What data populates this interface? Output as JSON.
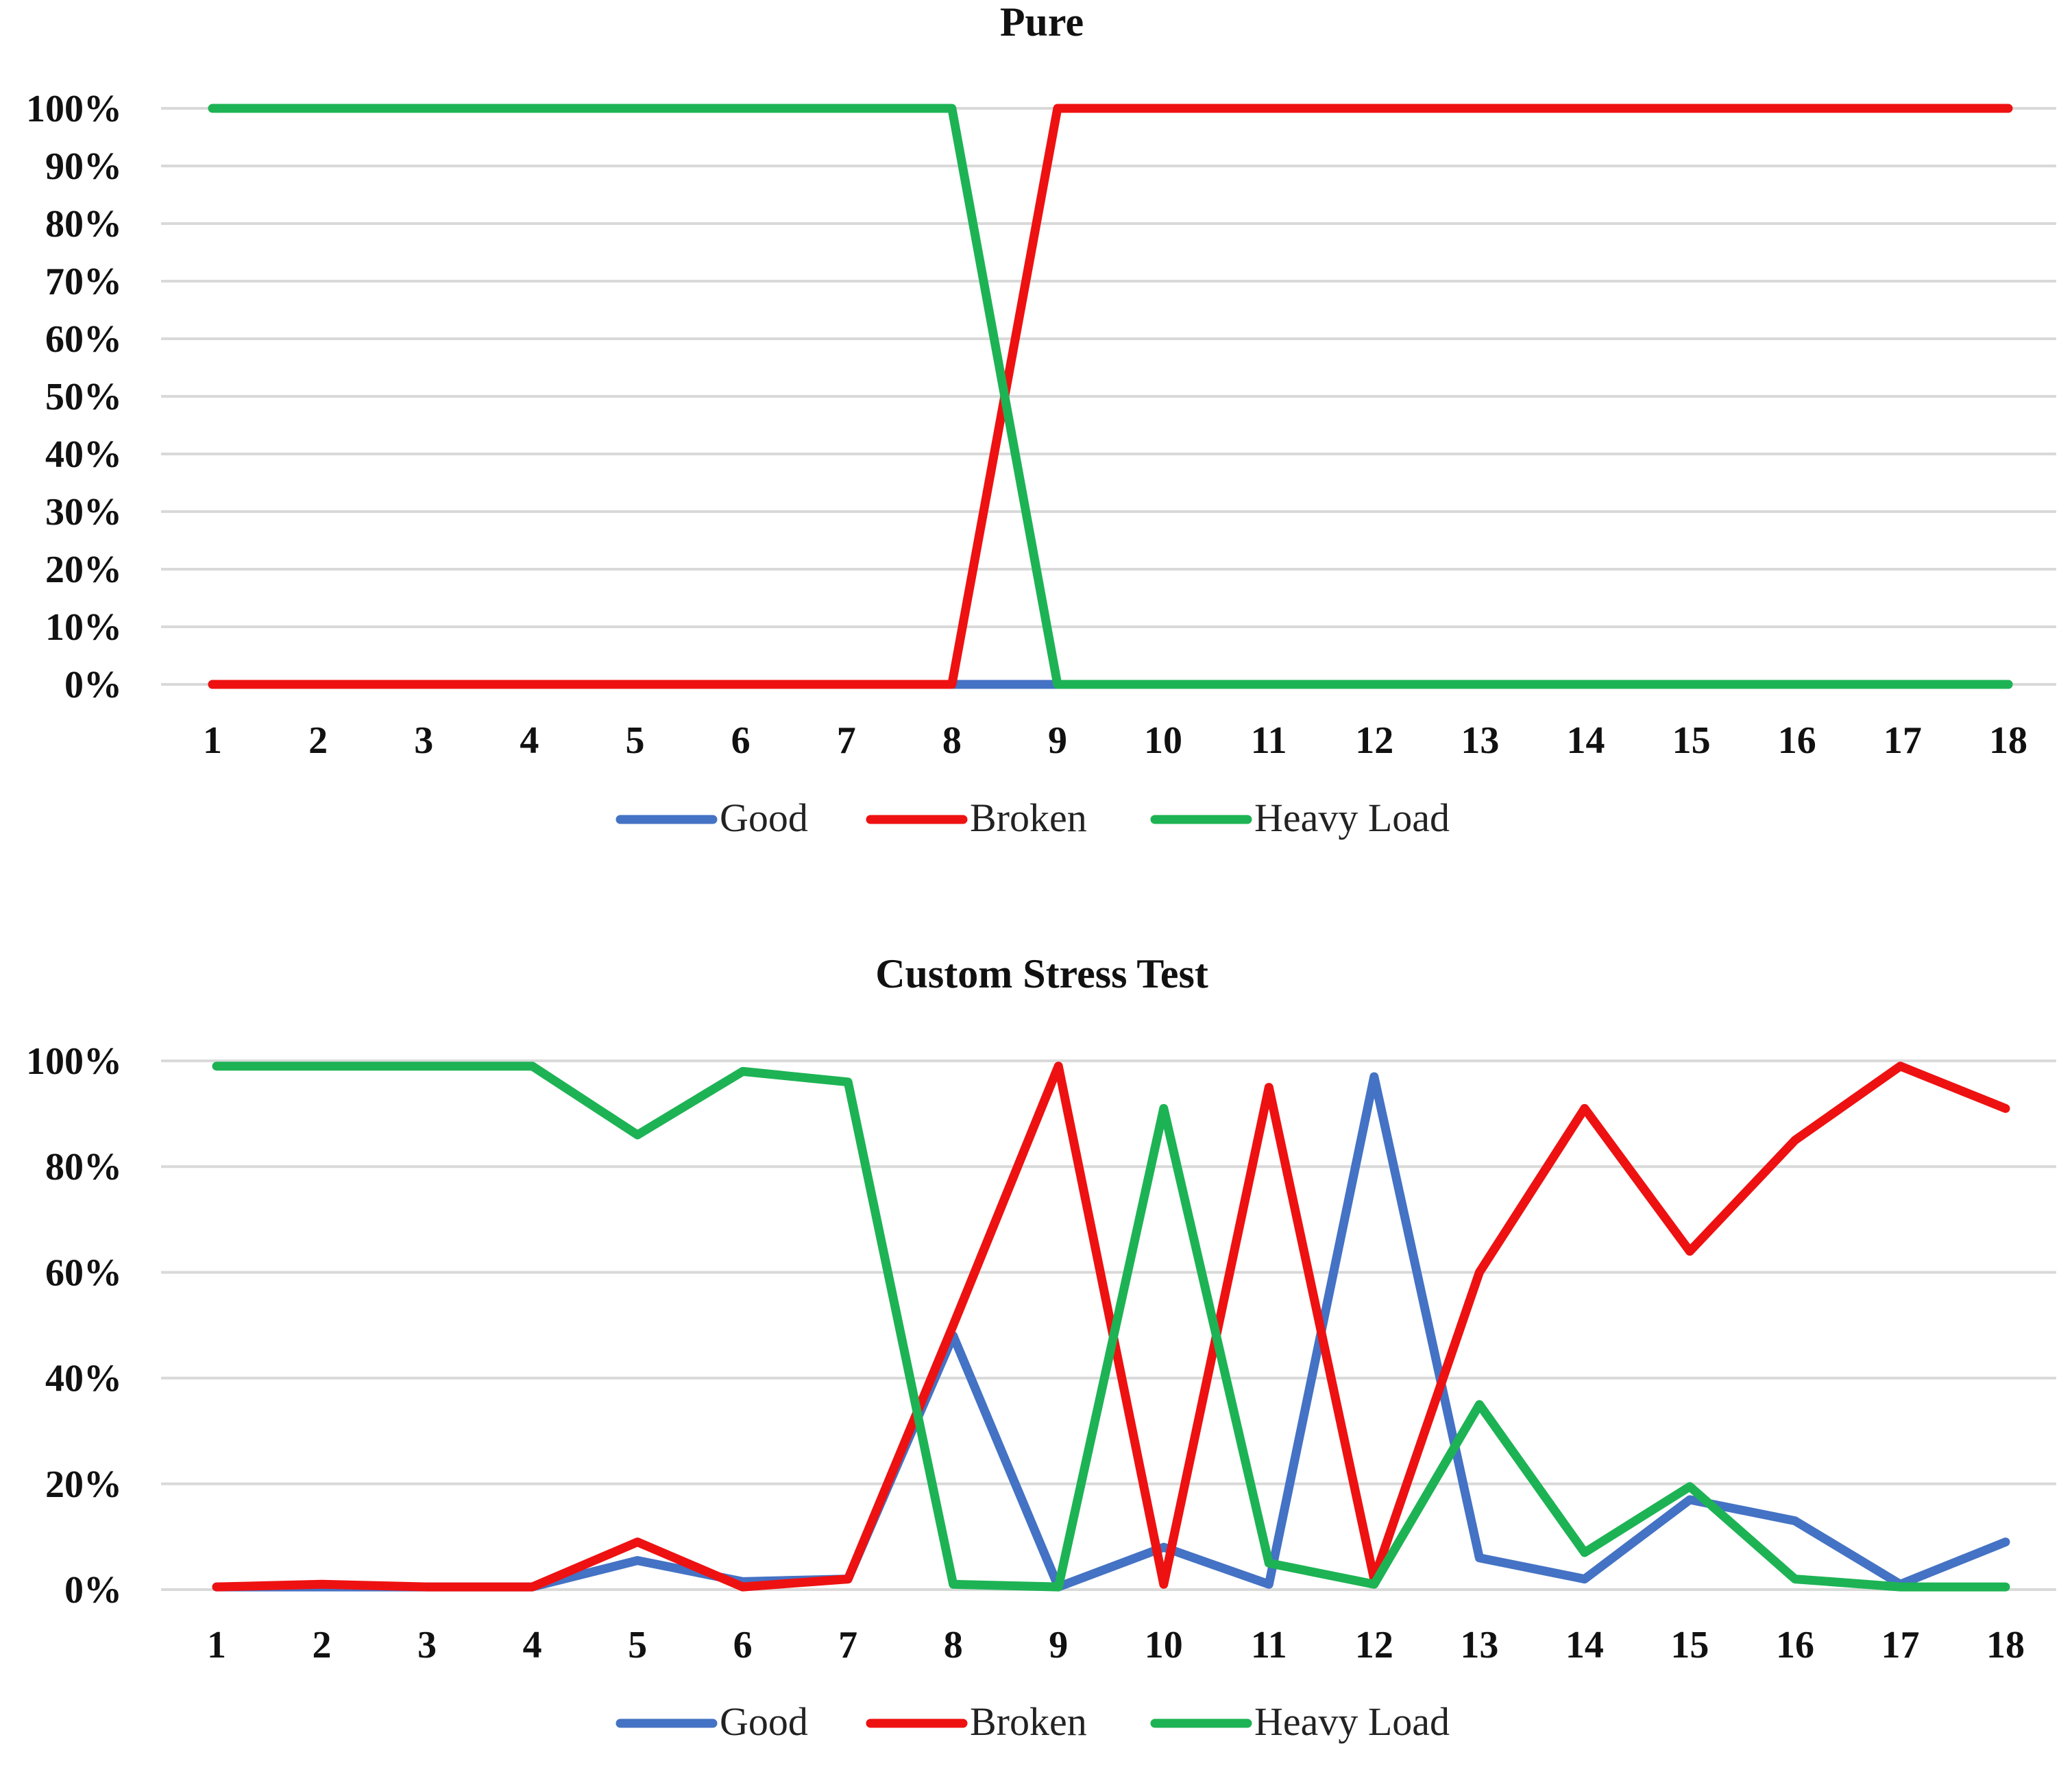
{
  "chart_data": [
    {
      "type": "line",
      "title": "Pure",
      "xlabel": "",
      "ylabel": "",
      "x": [
        1,
        2,
        3,
        4,
        5,
        6,
        7,
        8,
        9,
        10,
        11,
        12,
        13,
        14,
        15,
        16,
        17,
        18
      ],
      "ylim": [
        0,
        100
      ],
      "yticks": [
        0,
        10,
        20,
        30,
        40,
        50,
        60,
        70,
        80,
        90,
        100
      ],
      "ytick_labels": [
        "0%",
        "10%",
        "20%",
        "30%",
        "40%",
        "50%",
        "60%",
        "70%",
        "80%",
        "90%",
        "100%"
      ],
      "grid": true,
      "legend": "bottom-center",
      "series": [
        {
          "name": "Good",
          "color": "#4472c4",
          "values": [
            0,
            0,
            0,
            0,
            0,
            0,
            0,
            0,
            0,
            0,
            0,
            0,
            0,
            0,
            0,
            0,
            0,
            0
          ]
        },
        {
          "name": "Broken",
          "color": "#ee1111",
          "values": [
            0,
            0,
            0,
            0,
            0,
            0,
            0,
            0,
            100,
            100,
            100,
            100,
            100,
            100,
            100,
            100,
            100,
            100
          ]
        },
        {
          "name": "Heavy Load",
          "color": "#1db354",
          "values": [
            100,
            100,
            100,
            100,
            100,
            100,
            100,
            100,
            0,
            0,
            0,
            0,
            0,
            0,
            0,
            0,
            0,
            0
          ]
        }
      ]
    },
    {
      "type": "line",
      "title": "Custom Stress Test",
      "xlabel": "",
      "ylabel": "",
      "x": [
        1,
        2,
        3,
        4,
        5,
        6,
        7,
        8,
        9,
        10,
        11,
        12,
        13,
        14,
        15,
        16,
        17,
        18
      ],
      "ylim": [
        0,
        100
      ],
      "yticks": [
        0,
        20,
        40,
        60,
        80,
        100
      ],
      "ytick_labels": [
        "0%",
        "20%",
        "40%",
        "60%",
        "80%",
        "100%"
      ],
      "grid": true,
      "legend": "bottom-center",
      "series": [
        {
          "name": "Good",
          "color": "#4472c4",
          "values": [
            0.5,
            0.5,
            0.5,
            0.5,
            5.5,
            1.5,
            2,
            48,
            0.5,
            8,
            1,
            97,
            6,
            2,
            17,
            13,
            1,
            9
          ]
        },
        {
          "name": "Broken",
          "color": "#ee1111",
          "values": [
            0.5,
            1,
            0.5,
            0.5,
            9,
            0.5,
            2,
            50,
            99,
            1,
            95,
            2,
            60,
            91,
            64,
            85,
            99,
            91
          ]
        },
        {
          "name": "Heavy Load",
          "color": "#1db354",
          "values": [
            99,
            99,
            99,
            99,
            86,
            98,
            96,
            1,
            0.5,
            91,
            5,
            1,
            35,
            7,
            19.5,
            2,
            0.5,
            0.5
          ]
        }
      ]
    }
  ]
}
